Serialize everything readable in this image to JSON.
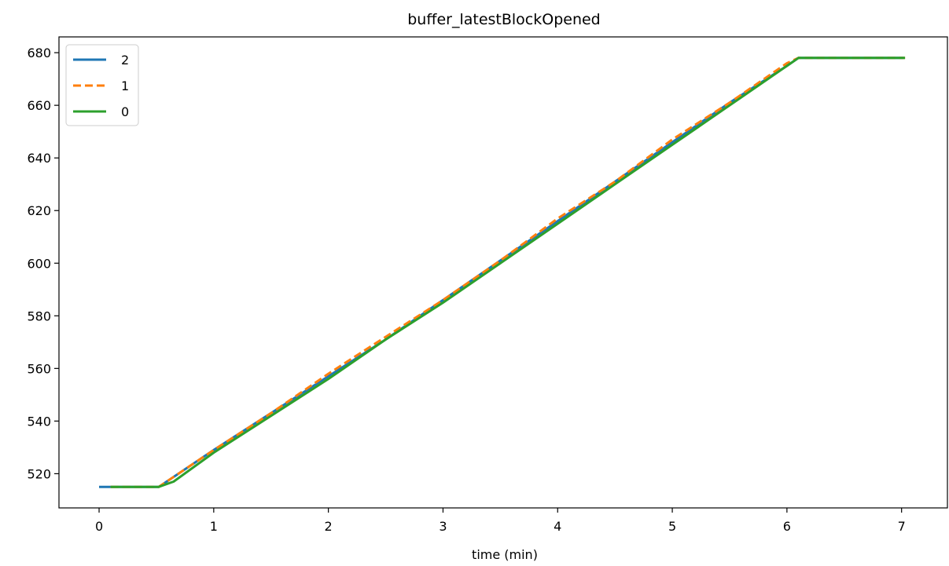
{
  "chart_data": {
    "type": "line",
    "title": "buffer_latestBlockOpened",
    "xlabel": "time (min)",
    "ylabel": "",
    "xlim": [
      -0.35,
      7.4
    ],
    "ylim": [
      507,
      686
    ],
    "xticks": [
      0,
      1,
      2,
      3,
      4,
      5,
      6,
      7
    ],
    "yticks": [
      520,
      540,
      560,
      580,
      600,
      620,
      640,
      660,
      680
    ],
    "grid": false,
    "legend_position": "upper left",
    "series": [
      {
        "name": "2",
        "color": "#1f77b4",
        "dash": "solid",
        "x": [
          0.0,
          0.52,
          1.0,
          1.5,
          2.0,
          2.5,
          3.0,
          3.5,
          4.0,
          4.5,
          5.0,
          5.5,
          6.0,
          6.1,
          7.02
        ],
        "y": [
          515,
          515,
          529,
          543,
          557,
          571,
          586,
          601,
          616,
          631,
          646,
          661,
          675,
          678,
          678
        ]
      },
      {
        "name": "1",
        "color": "#ff7f0e",
        "dash": "dashed",
        "x": [
          0.1,
          0.52,
          1.0,
          1.5,
          2.0,
          2.5,
          3.0,
          3.5,
          4.0,
          4.5,
          5.0,
          5.5,
          6.0,
          6.1,
          7.03
        ],
        "y": [
          515,
          515,
          529,
          543,
          558,
          572,
          586,
          601,
          617,
          631,
          647,
          661,
          676,
          678,
          678
        ]
      },
      {
        "name": "0",
        "color": "#2ca02c",
        "dash": "solid",
        "x": [
          0.1,
          0.52,
          0.65,
          1.0,
          1.5,
          2.0,
          2.5,
          3.0,
          3.5,
          4.0,
          4.5,
          5.0,
          5.5,
          6.0,
          6.1,
          7.03
        ],
        "y": [
          515,
          515,
          517,
          528,
          542,
          556,
          571,
          585,
          600,
          615,
          630,
          645,
          660,
          675,
          678,
          678
        ]
      }
    ]
  }
}
